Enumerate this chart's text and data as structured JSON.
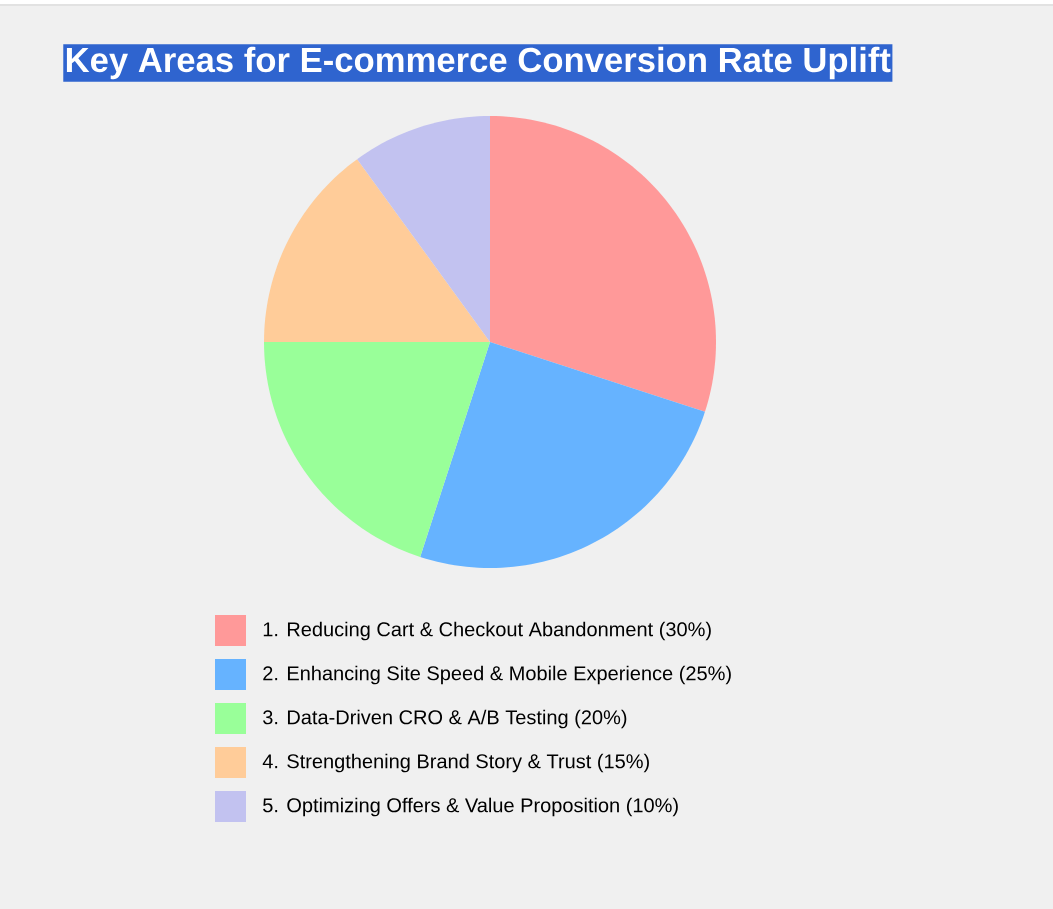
{
  "chart_data": {
    "type": "pie",
    "title": "Key Areas for E-commerce Conversion Rate Uplift",
    "categories": [
      "1. Reducing Cart & Checkout Abandonment (30%)",
      "2. Enhancing Site Speed & Mobile Experience (25%)",
      "3. Data-Driven CRO & A/B Testing (20%)",
      "4. Strengthening Brand Story & Trust (15%)",
      "5. Optimizing Offers & Value Proposition (10%)"
    ],
    "values": [
      30,
      25,
      20,
      15,
      10
    ],
    "colors": [
      "#ff9999",
      "#66b3ff",
      "#99ff99",
      "#ffcc99",
      "#c2c2f0"
    ],
    "legend": "bottom"
  }
}
